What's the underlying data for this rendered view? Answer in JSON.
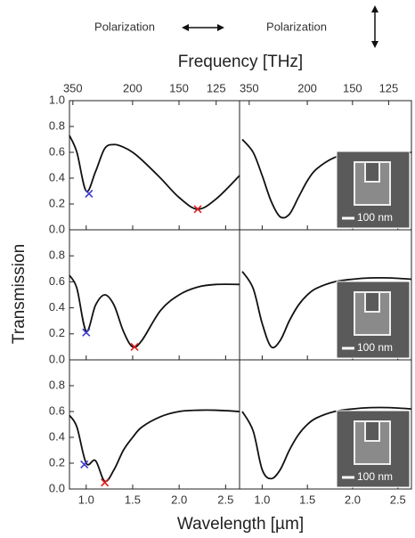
{
  "figure": {
    "polarization_left": "Polarization",
    "polarization_right": "Polarization",
    "top_axis_label": "Frequency [THz]",
    "x_axis_label": "Wavelength [µm]",
    "y_axis_label": "Transmission",
    "top_ticks": [
      350,
      200,
      150,
      125
    ],
    "xticks": [
      {
        "value": 1,
        "label": "1.0"
      },
      {
        "value": 1.5,
        "label": "1.5"
      },
      {
        "value": 2,
        "label": "2.0"
      },
      {
        "value": 2.5,
        "label": "2.5"
      }
    ]
  },
  "chart_data": [
    {
      "type": "line",
      "color": "#111111",
      "xlim": [
        0.82,
        2.65
      ],
      "ylim": [
        0,
        1.0
      ],
      "yticks": [
        {
          "value": 0,
          "label": "0.0"
        },
        {
          "value": 0.2,
          "label": "0.2"
        },
        {
          "value": 0.4,
          "label": "0.4"
        },
        {
          "value": 0.6,
          "label": "0.6"
        },
        {
          "value": 0.8,
          "label": "0.8"
        },
        {
          "value": 1,
          "label": "1.0"
        }
      ],
      "x": [
        0.82,
        0.9,
        1.0,
        1.1,
        1.2,
        1.3,
        1.4,
        1.5,
        1.6,
        1.8,
        2.0,
        2.2,
        2.4,
        2.65
      ],
      "values": [
        0.73,
        0.6,
        0.3,
        0.45,
        0.63,
        0.66,
        0.64,
        0.6,
        0.54,
        0.4,
        0.25,
        0.16,
        0.24,
        0.42
      ],
      "markers": [
        {
          "x": 1.03,
          "y": 0.28,
          "color": "#3a3ad0"
        },
        {
          "x": 2.2,
          "y": 0.16,
          "color": "#e02020"
        }
      ]
    },
    {
      "type": "line",
      "color": "#111111",
      "xlim": [
        0.75,
        2.65
      ],
      "ylim": [
        0,
        1.0
      ],
      "x": [
        0.78,
        0.9,
        1.0,
        1.1,
        1.2,
        1.3,
        1.4,
        1.5,
        1.6,
        1.8,
        2.0,
        2.2,
        2.4,
        2.65
      ],
      "values": [
        0.7,
        0.6,
        0.42,
        0.22,
        0.1,
        0.12,
        0.25,
        0.38,
        0.47,
        0.56,
        0.59,
        0.6,
        0.6,
        0.6
      ],
      "inset_label": "100 nm"
    },
    {
      "type": "line",
      "color": "#111111",
      "xlim": [
        0.82,
        2.65
      ],
      "ylim": [
        0,
        1.0
      ],
      "yticks": [
        {
          "value": 0,
          "label": "0.0"
        },
        {
          "value": 0.2,
          "label": "0.2"
        },
        {
          "value": 0.4,
          "label": "0.4"
        },
        {
          "value": 0.6,
          "label": "0.6"
        },
        {
          "value": 0.8,
          "label": "0.8"
        }
      ],
      "x": [
        0.82,
        0.9,
        1.0,
        1.1,
        1.2,
        1.3,
        1.4,
        1.5,
        1.6,
        1.8,
        2.0,
        2.2,
        2.4,
        2.65
      ],
      "values": [
        0.65,
        0.55,
        0.22,
        0.42,
        0.5,
        0.42,
        0.22,
        0.1,
        0.15,
        0.38,
        0.5,
        0.56,
        0.58,
        0.58
      ],
      "markers": [
        {
          "x": 1.0,
          "y": 0.21,
          "color": "#3a3ad0"
        },
        {
          "x": 1.52,
          "y": 0.1,
          "color": "#e02020"
        }
      ]
    },
    {
      "type": "line",
      "color": "#111111",
      "xlim": [
        0.75,
        2.65
      ],
      "ylim": [
        0,
        1.0
      ],
      "x": [
        0.78,
        0.9,
        1.0,
        1.1,
        1.2,
        1.3,
        1.4,
        1.5,
        1.6,
        1.8,
        2.0,
        2.2,
        2.4,
        2.65
      ],
      "values": [
        0.68,
        0.55,
        0.28,
        0.1,
        0.15,
        0.3,
        0.42,
        0.5,
        0.55,
        0.6,
        0.62,
        0.63,
        0.63,
        0.62
      ],
      "inset_label": "100 nm"
    },
    {
      "type": "line",
      "color": "#111111",
      "xlim": [
        0.82,
        2.65
      ],
      "ylim": [
        0,
        1.0
      ],
      "yticks": [
        {
          "value": 0,
          "label": "0.0"
        },
        {
          "value": 0.2,
          "label": "0.2"
        },
        {
          "value": 0.4,
          "label": "0.4"
        },
        {
          "value": 0.6,
          "label": "0.6"
        },
        {
          "value": 0.8,
          "label": "0.8"
        }
      ],
      "x": [
        0.82,
        0.9,
        1.0,
        1.1,
        1.2,
        1.3,
        1.4,
        1.5,
        1.6,
        1.8,
        2.0,
        2.2,
        2.4,
        2.65
      ],
      "values": [
        0.57,
        0.48,
        0.2,
        0.22,
        0.06,
        0.15,
        0.3,
        0.4,
        0.48,
        0.56,
        0.6,
        0.61,
        0.61,
        0.6
      ],
      "markers": [
        {
          "x": 0.98,
          "y": 0.19,
          "color": "#3a3ad0"
        },
        {
          "x": 1.2,
          "y": 0.05,
          "color": "#e02020"
        }
      ]
    },
    {
      "type": "line",
      "color": "#111111",
      "xlim": [
        0.75,
        2.65
      ],
      "ylim": [
        0,
        1.0
      ],
      "x": [
        0.78,
        0.9,
        1.0,
        1.1,
        1.2,
        1.3,
        1.4,
        1.5,
        1.6,
        1.8,
        2.0,
        2.2,
        2.4,
        2.65
      ],
      "values": [
        0.6,
        0.45,
        0.15,
        0.08,
        0.15,
        0.3,
        0.42,
        0.5,
        0.55,
        0.6,
        0.62,
        0.63,
        0.63,
        0.62
      ],
      "inset_label": "100 nm"
    }
  ]
}
